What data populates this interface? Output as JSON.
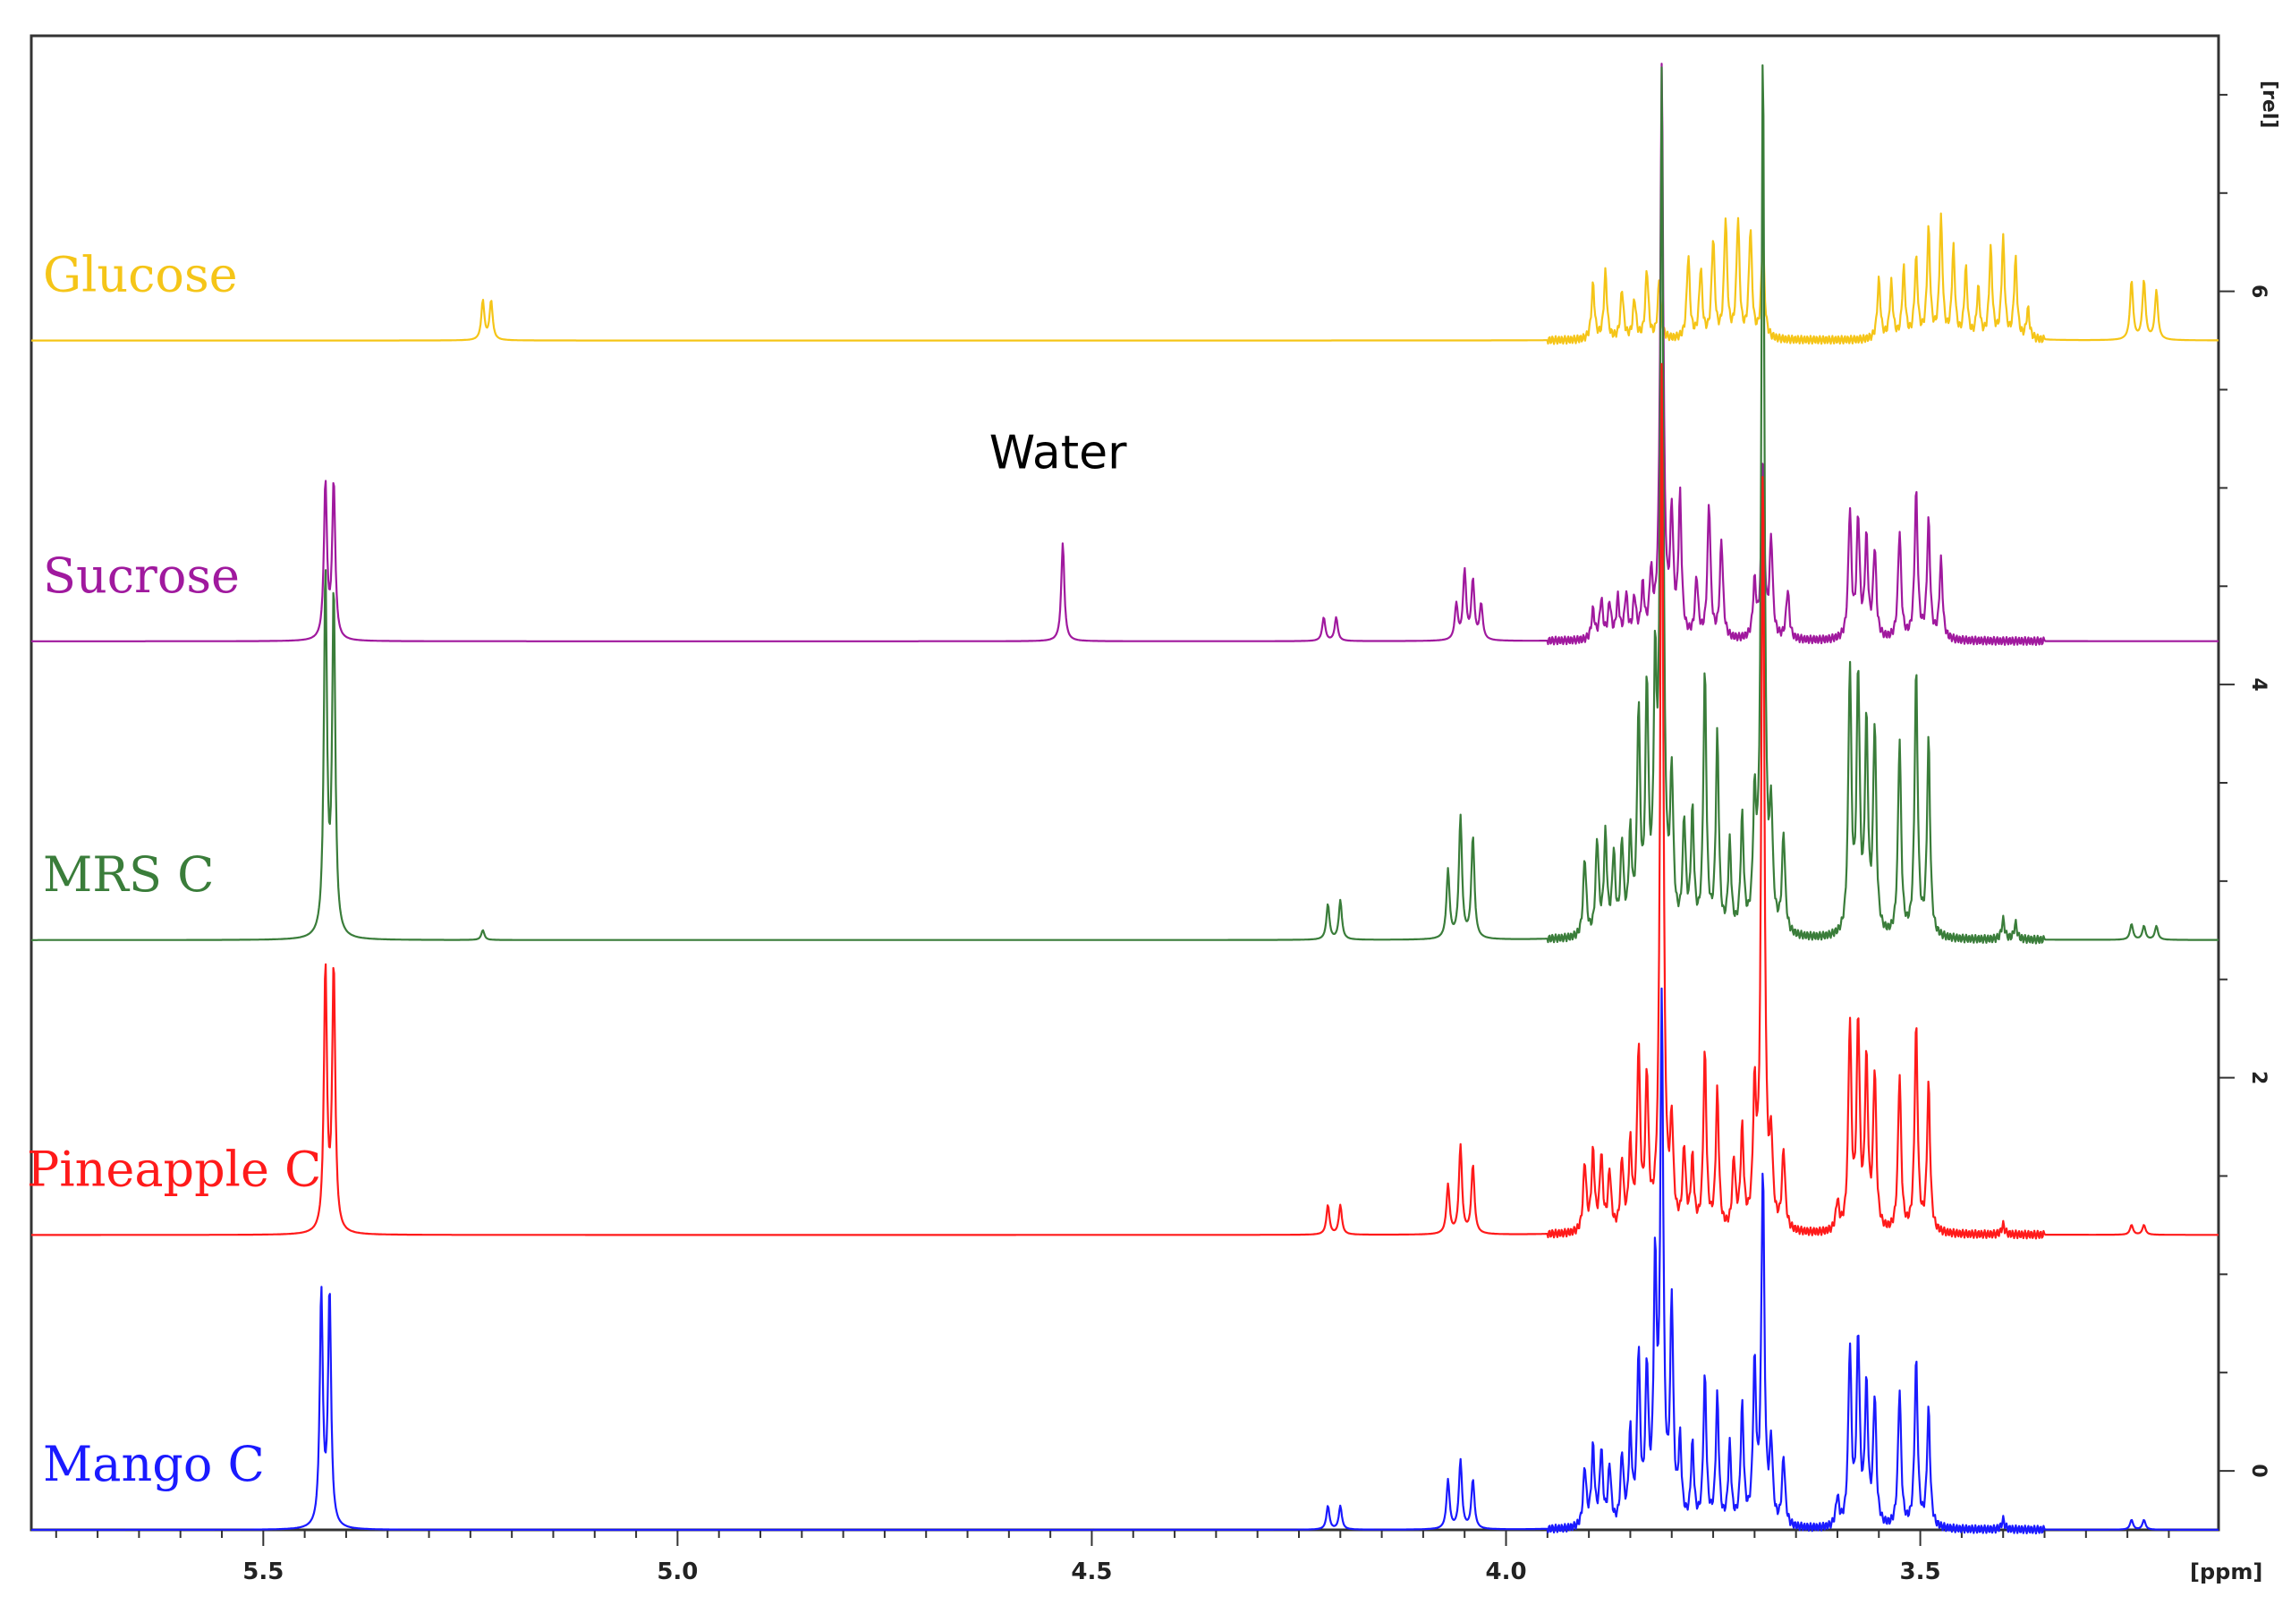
{
  "chart_data": {
    "type": "line",
    "xlabel": "[ppm]",
    "ylabel": "[rel]",
    "xlim": [
      5.78,
      3.14
    ],
    "ylim": [
      -0.3,
      7.3
    ],
    "x_ticks": [
      "5.5",
      "5.0",
      "4.5",
      "4.0",
      "3.5"
    ],
    "x_tick_values": [
      5.5,
      5.0,
      4.5,
      4.0,
      3.5
    ],
    "y_ticks": [
      "0",
      "2",
      "4",
      "6"
    ],
    "y_tick_values": [
      0,
      2,
      4,
      6
    ],
    "grid": false,
    "legend": "inline-left",
    "annotations": [
      {
        "text": "Water",
        "x": 4.53,
        "y": 5.1
      }
    ],
    "series": [
      {
        "name": "Glucose",
        "color": "#f5c518",
        "baseline": 5.75,
        "peaks": [
          [
            5.235,
            0.2
          ],
          [
            5.225,
            0.2
          ],
          [
            3.895,
            0.28
          ],
          [
            3.88,
            0.34
          ],
          [
            3.86,
            0.25
          ],
          [
            3.845,
            0.2
          ],
          [
            3.83,
            0.35
          ],
          [
            3.815,
            0.3
          ],
          [
            3.78,
            0.42
          ],
          [
            3.765,
            0.35
          ],
          [
            3.75,
            0.5
          ],
          [
            3.735,
            0.6
          ],
          [
            3.72,
            0.6
          ],
          [
            3.705,
            0.55
          ],
          [
            3.69,
            0.5
          ],
          [
            3.55,
            0.3
          ],
          [
            3.535,
            0.28
          ],
          [
            3.52,
            0.35
          ],
          [
            3.505,
            0.4
          ],
          [
            3.49,
            0.55
          ],
          [
            3.475,
            0.6
          ],
          [
            3.46,
            0.45
          ],
          [
            3.445,
            0.35
          ],
          [
            3.43,
            0.25
          ],
          [
            3.415,
            0.45
          ],
          [
            3.4,
            0.5
          ],
          [
            3.385,
            0.4
          ],
          [
            3.37,
            0.15
          ],
          [
            3.245,
            0.3
          ],
          [
            3.23,
            0.3
          ],
          [
            3.215,
            0.25
          ]
        ]
      },
      {
        "name": "Sucrose",
        "color": "#a0199e",
        "baseline": 4.22,
        "peaks": [
          [
            5.425,
            0.8
          ],
          [
            5.415,
            0.8
          ],
          [
            4.535,
            0.5
          ],
          [
            4.22,
            0.12
          ],
          [
            4.205,
            0.12
          ],
          [
            4.06,
            0.18
          ],
          [
            4.05,
            0.35
          ],
          [
            4.04,
            0.3
          ],
          [
            4.03,
            0.18
          ],
          [
            3.895,
            0.15
          ],
          [
            3.885,
            0.2
          ],
          [
            3.875,
            0.18
          ],
          [
            3.865,
            0.2
          ],
          [
            3.855,
            0.22
          ],
          [
            3.845,
            0.2
          ],
          [
            3.835,
            0.25
          ],
          [
            3.825,
            0.3
          ],
          [
            3.812,
            2.9
          ],
          [
            3.8,
            0.6
          ],
          [
            3.79,
            0.7
          ],
          [
            3.77,
            0.3
          ],
          [
            3.755,
            0.68
          ],
          [
            3.74,
            0.5
          ],
          [
            3.7,
            0.28
          ],
          [
            3.69,
            0.9
          ],
          [
            3.68,
            0.5
          ],
          [
            3.66,
            0.25
          ],
          [
            3.585,
            0.65
          ],
          [
            3.575,
            0.6
          ],
          [
            3.565,
            0.5
          ],
          [
            3.555,
            0.45
          ],
          [
            3.525,
            0.55
          ],
          [
            3.505,
            0.75
          ],
          [
            3.49,
            0.6
          ],
          [
            3.475,
            0.4
          ]
        ]
      },
      {
        "name": "MRS C",
        "color": "#3a7d3a",
        "baseline": 2.7,
        "peaks": [
          [
            5.425,
            1.85
          ],
          [
            5.415,
            1.75
          ],
          [
            5.235,
            0.05
          ],
          [
            4.215,
            0.18
          ],
          [
            4.2,
            0.2
          ],
          [
            4.07,
            0.35
          ],
          [
            4.055,
            0.62
          ],
          [
            4.04,
            0.52
          ],
          [
            3.905,
            0.4
          ],
          [
            3.89,
            0.48
          ],
          [
            3.88,
            0.5
          ],
          [
            3.87,
            0.4
          ],
          [
            3.86,
            0.45
          ],
          [
            3.85,
            0.48
          ],
          [
            3.84,
            1.1
          ],
          [
            3.83,
            1.2
          ],
          [
            3.82,
            1.2
          ],
          [
            3.812,
            4.3
          ],
          [
            3.8,
            0.75
          ],
          [
            3.785,
            0.55
          ],
          [
            3.775,
            0.6
          ],
          [
            3.76,
            1.32
          ],
          [
            3.745,
            1.0
          ],
          [
            3.73,
            0.45
          ],
          [
            3.715,
            0.58
          ],
          [
            3.7,
            0.6
          ],
          [
            3.69,
            4.5
          ],
          [
            3.68,
            0.55
          ],
          [
            3.665,
            0.5
          ],
          [
            3.585,
            1.35
          ],
          [
            3.575,
            1.3
          ],
          [
            3.565,
            1.05
          ],
          [
            3.555,
            1.05
          ],
          [
            3.525,
            1.0
          ],
          [
            3.505,
            1.35
          ],
          [
            3.49,
            1.0
          ],
          [
            3.4,
            0.1
          ],
          [
            3.385,
            0.08
          ],
          [
            3.245,
            0.08
          ],
          [
            3.23,
            0.07
          ],
          [
            3.215,
            0.07
          ]
        ]
      },
      {
        "name": "Pineapple C",
        "color": "#ff1a1a",
        "baseline": 1.2,
        "peaks": [
          [
            5.425,
            1.35
          ],
          [
            5.415,
            1.35
          ],
          [
            4.215,
            0.15
          ],
          [
            4.2,
            0.15
          ],
          [
            4.07,
            0.25
          ],
          [
            4.055,
            0.45
          ],
          [
            4.04,
            0.35
          ],
          [
            3.905,
            0.35
          ],
          [
            3.895,
            0.4
          ],
          [
            3.885,
            0.38
          ],
          [
            3.875,
            0.3
          ],
          [
            3.86,
            0.35
          ],
          [
            3.85,
            0.42
          ],
          [
            3.84,
            0.9
          ],
          [
            3.83,
            0.75
          ],
          [
            3.812,
            4.4
          ],
          [
            3.8,
            0.5
          ],
          [
            3.785,
            0.4
          ],
          [
            3.775,
            0.35
          ],
          [
            3.76,
            0.9
          ],
          [
            3.745,
            0.7
          ],
          [
            3.725,
            0.35
          ],
          [
            3.715,
            0.5
          ],
          [
            3.7,
            0.65
          ],
          [
            3.69,
            3.9
          ],
          [
            3.68,
            0.4
          ],
          [
            3.665,
            0.4
          ],
          [
            3.6,
            0.15
          ],
          [
            3.585,
            1.05
          ],
          [
            3.575,
            1.05
          ],
          [
            3.565,
            0.85
          ],
          [
            3.555,
            0.8
          ],
          [
            3.525,
            0.8
          ],
          [
            3.505,
            1.05
          ],
          [
            3.49,
            0.75
          ],
          [
            3.4,
            0.05
          ],
          [
            3.245,
            0.05
          ],
          [
            3.23,
            0.05
          ]
        ]
      },
      {
        "name": "Mango C",
        "color": "#1a1aff",
        "baseline": -0.3,
        "peaks": [
          [
            5.43,
            1.2
          ],
          [
            5.42,
            1.2
          ],
          [
            4.215,
            0.12
          ],
          [
            4.2,
            0.12
          ],
          [
            4.07,
            0.25
          ],
          [
            4.055,
            0.35
          ],
          [
            4.04,
            0.25
          ],
          [
            3.905,
            0.3
          ],
          [
            3.895,
            0.4
          ],
          [
            3.885,
            0.38
          ],
          [
            3.875,
            0.3
          ],
          [
            3.86,
            0.35
          ],
          [
            3.85,
            0.45
          ],
          [
            3.84,
            0.85
          ],
          [
            3.83,
            0.75
          ],
          [
            3.82,
            1.25
          ],
          [
            3.812,
            2.6
          ],
          [
            3.8,
            1.1
          ],
          [
            3.79,
            0.4
          ],
          [
            3.775,
            0.4
          ],
          [
            3.76,
            0.75
          ],
          [
            3.745,
            0.65
          ],
          [
            3.73,
            0.4
          ],
          [
            3.715,
            0.6
          ],
          [
            3.7,
            0.8
          ],
          [
            3.69,
            1.8
          ],
          [
            3.68,
            0.4
          ],
          [
            3.665,
            0.35
          ],
          [
            3.6,
            0.15
          ],
          [
            3.585,
            0.9
          ],
          [
            3.575,
            0.95
          ],
          [
            3.565,
            0.7
          ],
          [
            3.555,
            0.65
          ],
          [
            3.525,
            0.7
          ],
          [
            3.505,
            0.85
          ],
          [
            3.49,
            0.6
          ],
          [
            3.4,
            0.05
          ],
          [
            3.245,
            0.05
          ],
          [
            3.23,
            0.05
          ]
        ]
      }
    ]
  }
}
